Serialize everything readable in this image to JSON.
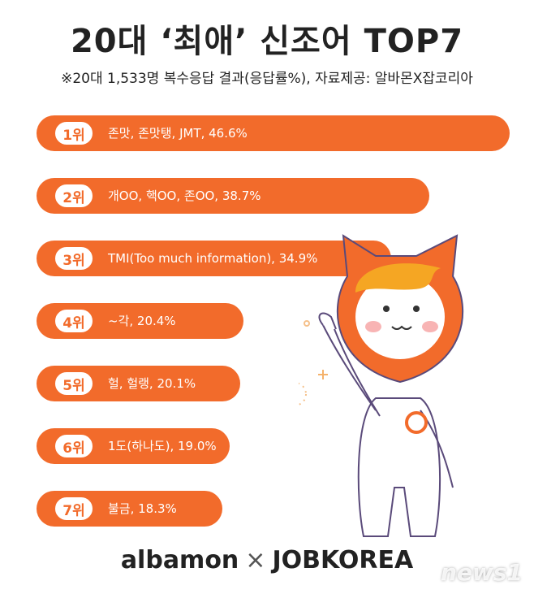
{
  "header": {
    "title": "20대 ‘최애’ 신조어 TOP7",
    "subtitle": "※20대 1,533명 복수응답 결과(응답률%),  자료제공: 알바몬X잡코리아"
  },
  "chart_data": {
    "type": "bar",
    "orientation": "horizontal",
    "unit": "%",
    "items": [
      {
        "rank": "1위",
        "label": "존맛, 존맛탱, JMT, 46.6%",
        "term": "존맛, 존맛탱, JMT",
        "value": 46.6
      },
      {
        "rank": "2위",
        "label": "개OO, 핵OO, 존OO, 38.7%",
        "term": "개OO, 핵OO, 존OO",
        "value": 38.7
      },
      {
        "rank": "3위",
        "label": "TMI(Too much information), 34.9%",
        "term": "TMI(Too much information)",
        "value": 34.9
      },
      {
        "rank": "4위",
        "label": "~각, 20.4%",
        "term": "~각",
        "value": 20.4
      },
      {
        "rank": "5위",
        "label": "헐, 헐랭, 20.1%",
        "term": "헐, 헐랭",
        "value": 20.1
      },
      {
        "rank": "6위",
        "label": "1도(하나도), 19.0%",
        "term": "1도(하나도)",
        "value": 19.0
      },
      {
        "rank": "7위",
        "label": "불금, 18.3%",
        "term": "불금",
        "value": 18.3
      }
    ]
  },
  "footer": {
    "logo_left": "albamon",
    "separator": "×",
    "logo_right": "JOBKOREA",
    "watermark": "news1"
  },
  "colors": {
    "accent": "#f26b2b",
    "mascot_hair": "#f5a623"
  }
}
